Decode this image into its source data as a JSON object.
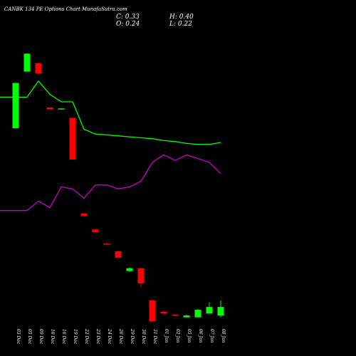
{
  "header": {
    "title": "CANBK 134  PE Options  Chart MunafaSutra.com",
    "close_label": "C: 0.33",
    "high_label": "H: 0.40",
    "open_label": "O: 0.24",
    "low_label": "L: 0.22"
  },
  "colors": {
    "background": "#000000",
    "ma_green": "#00ff00",
    "ma_magenta": "#cc00cc",
    "up_candle": "#00ff00",
    "down_candle": "#ff0000",
    "text": "#ffffff"
  },
  "chart_data": {
    "type": "candlestick",
    "title": "CANBK 134  PE Options  Chart MunafaSutra.com",
    "categories": [
      "03 Dec",
      "05 Dec",
      "09 Dec",
      "10 Dec",
      "16 Dec",
      "19 Dec",
      "22 Dec",
      "23 Dec",
      "24 Dec",
      "26 Dec",
      "29 Dec",
      "30 Dec",
      "31 Dec",
      "01 Jan",
      "02 Jan",
      "05 Jan",
      "06 Jan",
      "07 Jan",
      "08 Jan"
    ],
    "candles": [
      {
        "date": "03 Dec",
        "open": 2.22,
        "close": 2.7,
        "high": 2.7,
        "low": 2.22,
        "direction": "up"
      },
      {
        "date": "05 Dec",
        "open": 2.82,
        "close": 3.01,
        "high": 3.01,
        "low": 2.82,
        "direction": "up"
      },
      {
        "date": "09 Dec",
        "open": 2.91,
        "close": 2.8,
        "high": 2.91,
        "low": 2.8,
        "direction": "down"
      },
      {
        "date": "10 Dec",
        "open": 2.44,
        "close": 2.42,
        "high": 2.44,
        "low": 2.42,
        "direction": "down"
      },
      {
        "date": "16 Dec",
        "open": 2.42,
        "close": 2.43,
        "high": 2.43,
        "low": 2.42,
        "direction": "up"
      },
      {
        "date": "19 Dec",
        "open": 2.33,
        "close": 1.89,
        "high": 2.33,
        "low": 1.89,
        "direction": "down"
      },
      {
        "date": "22 Dec",
        "open": 1.32,
        "close": 1.29,
        "high": 1.32,
        "low": 1.29,
        "direction": "down"
      },
      {
        "date": "23 Dec",
        "open": 1.15,
        "close": 1.12,
        "high": 1.15,
        "low": 1.12,
        "direction": "down"
      },
      {
        "date": "24 Dec",
        "open": 1.0,
        "close": 1.0,
        "high": 1.01,
        "low": 0.99,
        "direction": "down"
      },
      {
        "date": "26 Dec",
        "open": 0.92,
        "close": 0.85,
        "high": 0.92,
        "low": 0.85,
        "direction": "down"
      },
      {
        "date": "29 Dec",
        "open": 0.71,
        "close": 0.74,
        "high": 0.75,
        "low": 0.7,
        "direction": "up"
      },
      {
        "date": "30 Dec",
        "open": 0.74,
        "close": 0.58,
        "high": 0.74,
        "low": 0.54,
        "direction": "down"
      },
      {
        "date": "31 Dec",
        "open": 0.4,
        "close": 0.18,
        "high": 0.4,
        "low": 0.18,
        "direction": "down"
      },
      {
        "date": "01 Jan",
        "open": 0.28,
        "close": 0.26,
        "high": 0.29,
        "low": 0.25,
        "direction": "down"
      },
      {
        "date": "02 Jan",
        "open": 0.25,
        "close": 0.24,
        "high": 0.25,
        "low": 0.23,
        "direction": "down"
      },
      {
        "date": "05 Jan",
        "open": 0.22,
        "close": 0.24,
        "high": 0.25,
        "low": 0.22,
        "direction": "up"
      },
      {
        "date": "06 Jan",
        "open": 0.22,
        "close": 0.3,
        "high": 0.31,
        "low": 0.22,
        "direction": "up"
      },
      {
        "date": "07 Jan",
        "open": 0.26,
        "close": 0.33,
        "high": 0.38,
        "low": 0.26,
        "direction": "up"
      },
      {
        "date": "08 Jan",
        "open": 0.24,
        "close": 0.33,
        "high": 0.4,
        "low": 0.22,
        "direction": "up"
      }
    ],
    "series": [
      {
        "color": "#00ff00",
        "values": [
          2.55,
          2.55,
          2.72,
          2.58,
          2.5,
          2.5,
          2.21,
          2.16,
          2.15,
          2.14,
          2.13,
          2.12,
          2.11,
          2.09,
          2.08,
          2.06,
          2.05,
          2.05,
          2.07
        ]
      },
      {
        "color": "#cc00cc",
        "values": [
          1.35,
          1.35,
          1.45,
          1.38,
          1.6,
          1.58,
          1.48,
          1.62,
          1.62,
          1.58,
          1.6,
          1.66,
          1.86,
          1.94,
          1.88,
          1.94,
          1.9,
          1.86,
          1.74
        ]
      }
    ],
    "grid": false
  }
}
